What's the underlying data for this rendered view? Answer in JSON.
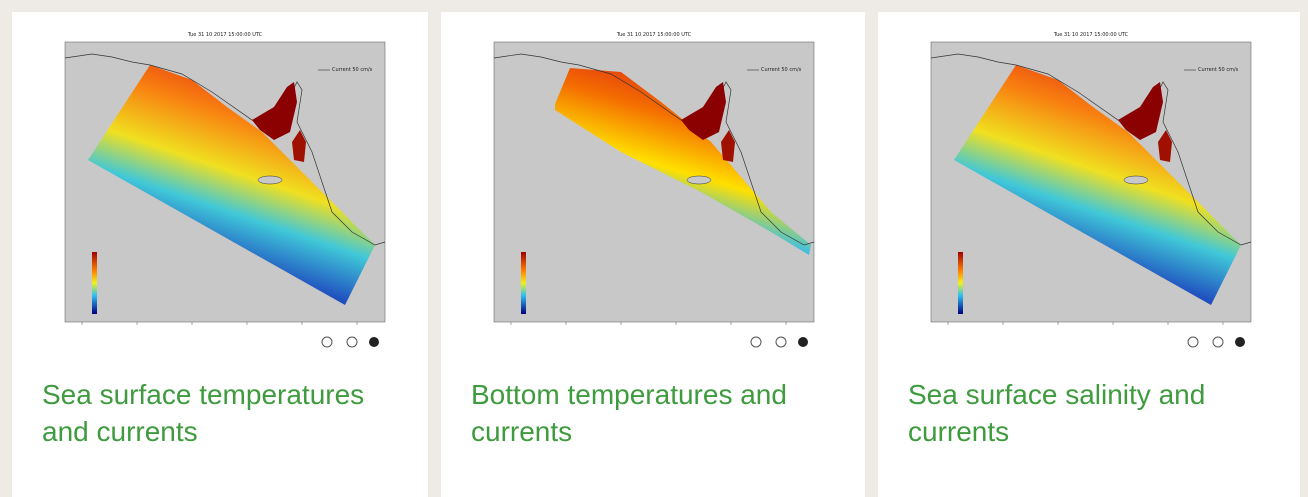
{
  "cards": [
    {
      "map_title": "Tue 31 10 2017 15:00:00 UTC",
      "map_legend": "Current 50 cm/s",
      "caption": "Sea surface temperatures and currents"
    },
    {
      "map_title": "Tue 31 10 2017 15:00:00 UTC",
      "map_legend": "Current 50 cm/s",
      "caption": "Bottom temperatures and currents"
    },
    {
      "map_title": "Tue 31 10 2017 15:00:00 UTC",
      "map_legend": "Current 50 cm/s",
      "caption": "Sea surface salinity and currents"
    }
  ]
}
